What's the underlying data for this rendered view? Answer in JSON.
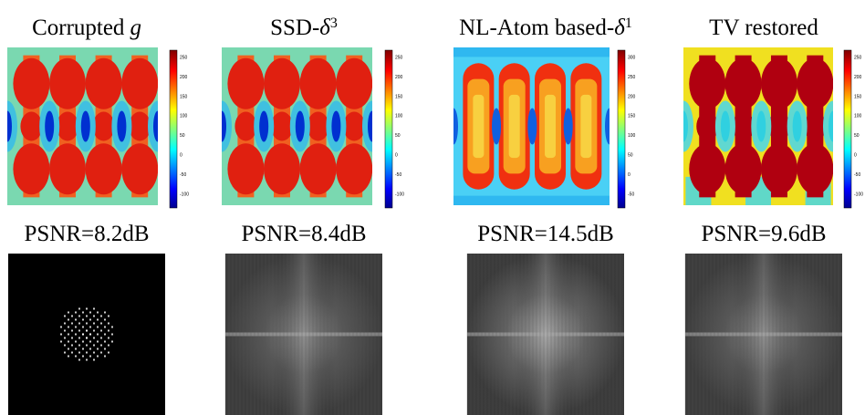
{
  "panels": [
    {
      "title": {
        "text": "Corrupted",
        "math": "g"
      },
      "colorbar_ticks": [
        250,
        200,
        150,
        100,
        50,
        0,
        -50,
        -100
      ],
      "psnr": "PSNR=8.2dB"
    },
    {
      "title": {
        "text": "SSD-",
        "math": "δ",
        "sup": "3"
      },
      "colorbar_ticks": [
        250,
        200,
        150,
        100,
        50,
        0,
        -50,
        -100
      ],
      "psnr": "PSNR=8.4dB"
    },
    {
      "title": {
        "text": "NL-Atom based-",
        "math": "δ",
        "sup": "1"
      },
      "colorbar_ticks": [
        300,
        250,
        200,
        150,
        100,
        50,
        0,
        -50
      ],
      "psnr": "PSNR=14.5dB"
    },
    {
      "title": {
        "text": "TV restored"
      },
      "colorbar_ticks": [
        250,
        200,
        150,
        100,
        50,
        0,
        -50,
        -100
      ],
      "psnr": "PSNR=9.6dB"
    }
  ]
}
